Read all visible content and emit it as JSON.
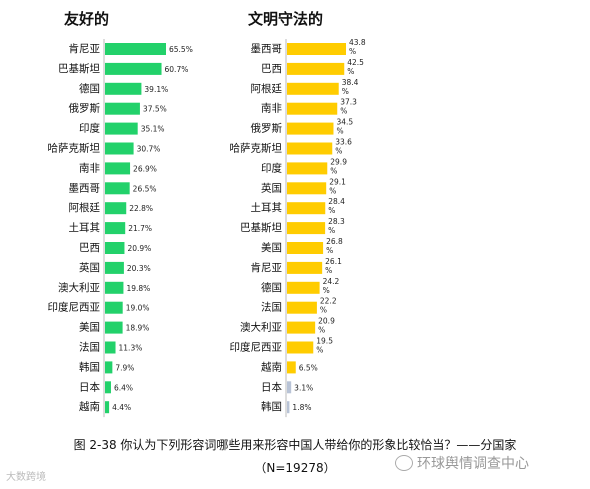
{
  "chart_data": [
    {
      "type": "bar",
      "orientation": "horizontal",
      "title": "友好的",
      "color": "#22d16a",
      "categories": [
        "肯尼亚",
        "巴基斯坦",
        "德国",
        "俄罗斯",
        "印度",
        "哈萨克斯坦",
        "南非",
        "墨西哥",
        "阿根廷",
        "土耳其",
        "巴西",
        "英国",
        "澳大利亚",
        "印度尼西亚",
        "美国",
        "法国",
        "韩国",
        "日本",
        "越南"
      ],
      "values": [
        65.5,
        60.7,
        39.1,
        37.5,
        35.1,
        30.7,
        26.9,
        26.5,
        22.8,
        21.7,
        20.9,
        20.3,
        19.8,
        19.0,
        18.9,
        11.3,
        7.9,
        6.4,
        4.4
      ],
      "labels": [
        "65.5%",
        "60.7%",
        "39.1%",
        "37.5%",
        "35.1%",
        "30.7%",
        "26.9%",
        "26.5%",
        "22.8%",
        "21.7%",
        "20.9%",
        "20.3%",
        "19.8%",
        "19.0%",
        "18.9%",
        "11.3%",
        "7.9%",
        "6.4%",
        "4.4%"
      ],
      "xlim": [
        0,
        70
      ]
    },
    {
      "type": "bar",
      "orientation": "horizontal",
      "title": "文明守法的",
      "color": "#ffcc00",
      "categories": [
        "墨西哥",
        "巴西",
        "阿根廷",
        "南非",
        "俄罗斯",
        "哈萨克斯坦",
        "印度",
        "英国",
        "土耳其",
        "巴基斯坦",
        "美国",
        "肯尼亚",
        "德国",
        "法国",
        "澳大利亚",
        "印度尼西亚",
        "越南",
        "日本",
        "韩国"
      ],
      "values": [
        43.8,
        42.5,
        38.4,
        37.3,
        34.5,
        33.6,
        29.9,
        29.1,
        28.4,
        28.3,
        26.8,
        26.1,
        24.2,
        22.2,
        20.9,
        19.5,
        6.5,
        3.1,
        1.8
      ],
      "labels": [
        "43.8",
        "42.5",
        "38.4",
        "37.3",
        "34.5",
        "33.6",
        "29.9",
        "29.1",
        "28.4",
        "28.3",
        "26.8",
        "26.1",
        "24.2",
        "22.2",
        "20.9",
        "19.5",
        "6.5%",
        "3.1%",
        "1.8%"
      ],
      "label_wrapped": [
        true,
        true,
        true,
        true,
        true,
        true,
        true,
        true,
        true,
        true,
        true,
        true,
        true,
        true,
        true,
        true,
        false,
        false,
        false
      ],
      "xlim": [
        0,
        48
      ]
    }
  ],
  "caption": {
    "line1": "图 2-38  你认为下列形容词哪些用来形容中国人带给你的形象比较恰当？——分国家",
    "line2": "（N=19278）"
  },
  "watermarks": {
    "left": "大数跨境",
    "right": "环球舆情调查中心",
    "right_icon": "wechat-icon"
  }
}
